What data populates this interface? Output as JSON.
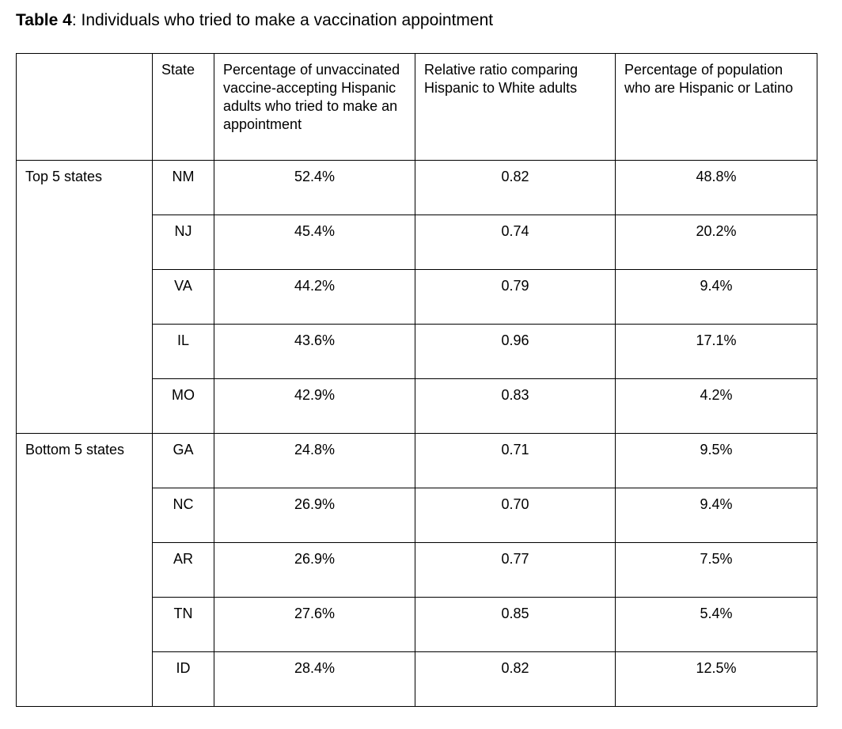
{
  "caption": {
    "label": "Table 4",
    "text": ": Individuals who tried to make a vaccination appointment"
  },
  "table": {
    "headers": {
      "group": "",
      "state": "State",
      "pct_tried": "Percentage of unvaccinated vaccine-accepting Hispanic adults who tried to make an appointment",
      "ratio": "Relative ratio comparing Hispanic to White adults",
      "pop_pct": "Percentage of population who are Hispanic or Latino"
    },
    "groups": [
      {
        "label": "Top 5 states",
        "rows": [
          {
            "state": "NM",
            "pct_tried": "52.4%",
            "ratio": "0.82",
            "pop_pct": "48.8%"
          },
          {
            "state": "NJ",
            "pct_tried": "45.4%",
            "ratio": "0.74",
            "pop_pct": "20.2%"
          },
          {
            "state": "VA",
            "pct_tried": "44.2%",
            "ratio": "0.79",
            "pop_pct": "9.4%"
          },
          {
            "state": "IL",
            "pct_tried": "43.6%",
            "ratio": "0.96",
            "pop_pct": "17.1%"
          },
          {
            "state": "MO",
            "pct_tried": "42.9%",
            "ratio": "0.83",
            "pop_pct": "4.2%"
          }
        ]
      },
      {
        "label": "Bottom 5 states",
        "rows": [
          {
            "state": "GA",
            "pct_tried": "24.8%",
            "ratio": "0.71",
            "pop_pct": "9.5%"
          },
          {
            "state": "NC",
            "pct_tried": "26.9%",
            "ratio": "0.70",
            "pop_pct": "9.4%"
          },
          {
            "state": "AR",
            "pct_tried": "26.9%",
            "ratio": "0.77",
            "pop_pct": "7.5%"
          },
          {
            "state": "TN",
            "pct_tried": "27.6%",
            "ratio": "0.85",
            "pop_pct": "5.4%"
          },
          {
            "state": "ID",
            "pct_tried": "28.4%",
            "ratio": "0.82",
            "pop_pct": "12.5%"
          }
        ]
      }
    ]
  },
  "colors": {
    "background": "#ffffff",
    "text": "#000000",
    "border": "#000000"
  }
}
